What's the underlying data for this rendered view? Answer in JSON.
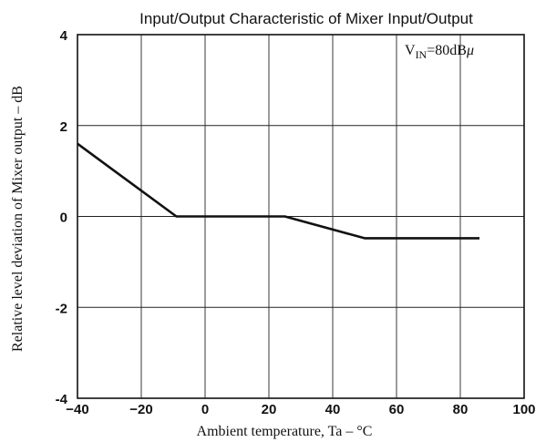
{
  "chart_data": {
    "type": "line",
    "title": "Input/Output Characteristic of Mixer Input/Output",
    "xlabel": "Ambient temperature, Ta  –  °C",
    "ylabel": "Relative level deviation of Mixer output  –  dB",
    "xlim": [
      -40,
      100
    ],
    "ylim": [
      -4,
      4
    ],
    "xticks": [
      -40,
      -20,
      0,
      20,
      40,
      60,
      80,
      100
    ],
    "yticks": [
      4,
      2,
      0,
      -2,
      -4
    ],
    "xtick_labels": [
      "−40",
      "−20",
      "0",
      "20",
      "40",
      "60",
      "80",
      "100"
    ],
    "ytick_labels": [
      "4",
      "2",
      "0",
      "-2",
      "-4"
    ],
    "grid": true,
    "annotation": {
      "main": "V",
      "sub": "IN",
      "rest": "=80dB",
      "unit": "μ"
    },
    "series": [
      {
        "x": [
          -40,
          -9,
          25,
          50,
          86
        ],
        "y": [
          1.6,
          0.0,
          0.0,
          -0.48,
          -0.48
        ]
      }
    ]
  }
}
